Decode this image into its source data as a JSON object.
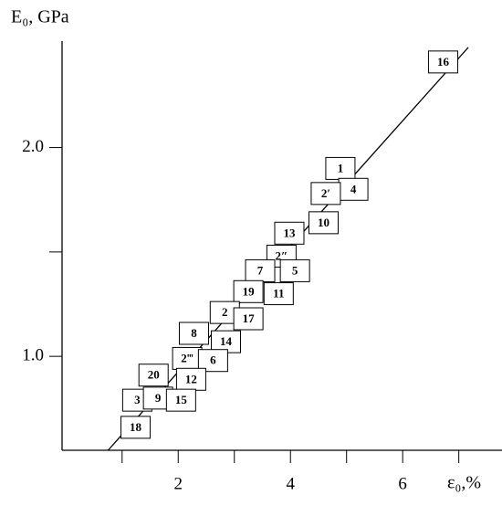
{
  "chart_data": {
    "type": "scatter",
    "x_label": "ε₀,%",
    "y_label": "E₀, GPa",
    "xlim": [
      -0.07,
      7.77
    ],
    "ylim": [
      0.55,
      2.51
    ],
    "xticks": [
      2,
      4,
      6
    ],
    "minor_xticks": [
      1,
      3,
      5,
      7
    ],
    "yticks": [
      {
        "value": 1,
        "label": "1.0"
      },
      {
        "value": 2,
        "label": "2.0"
      }
    ],
    "minor_yticks": [
      1.5
    ],
    "fit_line": {
      "x": [
        0.75,
        7.17
      ],
      "y": [
        0.55,
        2.48
      ]
    },
    "points": {
      "labels": [
        "16",
        "1",
        "4",
        "2′",
        "10",
        "13",
        "2″",
        "7",
        "5",
        "19",
        "11",
        "2",
        "17",
        "8",
        "14",
        "2‴",
        "6",
        "20",
        "12",
        "3",
        "9",
        "15",
        "18"
      ],
      "x": [
        6.72,
        4.89,
        5.12,
        4.63,
        4.59,
        3.98,
        3.84,
        3.46,
        4.08,
        3.25,
        3.79,
        2.83,
        3.25,
        2.28,
        2.85,
        2.16,
        2.62,
        1.56,
        2.23,
        1.27,
        1.64,
        2.05,
        1.24
      ],
      "y": [
        2.41,
        1.9,
        1.8,
        1.78,
        1.64,
        1.59,
        1.48,
        1.41,
        1.41,
        1.31,
        1.3,
        1.21,
        1.18,
        1.11,
        1.07,
        0.99,
        0.98,
        0.91,
        0.89,
        0.79,
        0.8,
        0.79,
        0.66
      ]
    }
  }
}
